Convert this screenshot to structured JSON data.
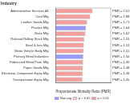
{
  "chart_data": {
    "type": "bar",
    "orientation": "horizontal",
    "stacked": true,
    "title": "Industry",
    "x_label": "Proportionate Mortality Ratio (PMR)",
    "categories": [
      "Administrative Services All",
      "Coal Mfg",
      "Leather Goods Mfg",
      "Plastics Mfg",
      "Glass Mfg",
      "Railroad Rolling Stock Mfg",
      "Steel & Iron Mfg",
      "Motor Vehicle Body Mfg",
      "Primary Metal Industries",
      "Fabricated Metal Prod. Mfg",
      "Paper Goods Mfg",
      "Electronic Component Equip Mfg",
      "Transportation Equip Mfg"
    ],
    "series": [
      {
        "name": "Non-sig",
        "color": "#9999ff",
        "values": [
          null,
          null,
          null,
          1.64,
          null,
          null,
          null,
          null,
          1.5,
          null,
          null,
          null,
          null
        ],
        "value_labels": [
          null,
          null,
          null,
          "PMR = 1.64",
          null,
          null,
          null,
          null,
          "PMR = 1.50",
          null,
          null,
          null,
          null
        ]
      },
      {
        "name": "p < 0.05",
        "color": "#f7c6c6",
        "values": [
          null,
          null,
          null,
          null,
          null,
          null,
          null,
          null,
          null,
          null,
          null,
          null,
          null
        ],
        "value_labels": [
          null,
          null,
          null,
          null,
          null,
          null,
          null,
          null,
          null,
          null,
          null,
          null,
          null
        ]
      },
      {
        "name": "p < 0.01",
        "color": "#f4a0a0",
        "values": [
          2.01,
          1.88,
          1.71,
          null,
          1.62,
          1.55,
          1.53,
          1.51,
          null,
          1.49,
          1.48,
          1.46,
          1.45
        ],
        "value_labels": [
          "PMR = 2.01",
          "PMR = 1.88",
          "PMR = 1.71",
          null,
          "PMR = 1.62",
          "PMR = 1.55",
          "PMR = 1.53",
          "PMR = 1.51",
          null,
          "PMR = 1.49",
          "PMR = 1.48",
          "PMR = 1.46",
          "PMR = 1.45"
        ]
      }
    ],
    "xlim": [
      0,
      3
    ],
    "tick_labels": "y",
    "data_labels": true,
    "legend": "bottom",
    "grid": false
  }
}
